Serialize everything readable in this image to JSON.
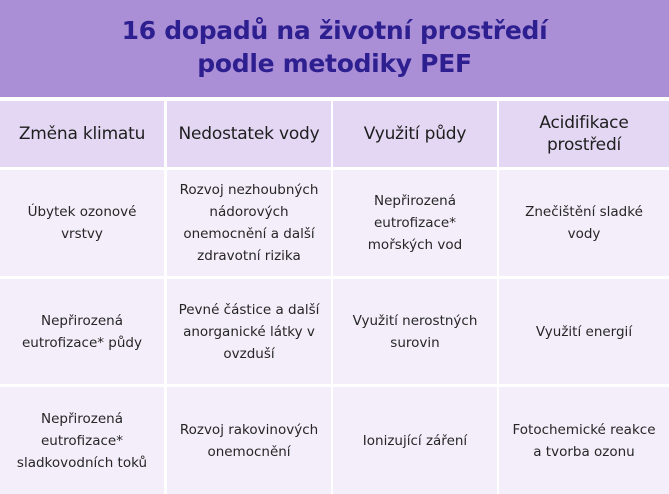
{
  "title": {
    "line1": "16 dopadů na životní prostředí",
    "line2": "podle metodiky PEF"
  },
  "colors": {
    "title_band": "#aa8fd6",
    "title_text": "#2d1f8f",
    "header_cell": "#e3d7f3",
    "body_cell": "#f3eefa"
  },
  "table": {
    "headers": [
      "Změna klimatu",
      "Nedostatek vody",
      "Využití půdy",
      "Acidifikace prostředí"
    ],
    "rows": [
      [
        "Úbytek ozonové vrstvy",
        "Rozvoj nezhoubných\nnádorových\nonemocnění a další\nzdravotní rizika",
        "Nepřirozená eutrofizace*\nmořských vod",
        "Znečištění sladké vody"
      ],
      [
        "Nepřirozená\neutrofizace* půdy",
        "Pevné částice a další\nanorganické látky v\novzduší",
        "Využití nerostných\nsurovin",
        "Využití energií"
      ],
      [
        "Nepřirozená\neutrofizace*\nsladkovodních toků",
        "Rozvoj rakovinových\nonemocnění",
        "Ionizující záření",
        "Fotochemické reakce\na tvorba ozonu"
      ]
    ]
  }
}
